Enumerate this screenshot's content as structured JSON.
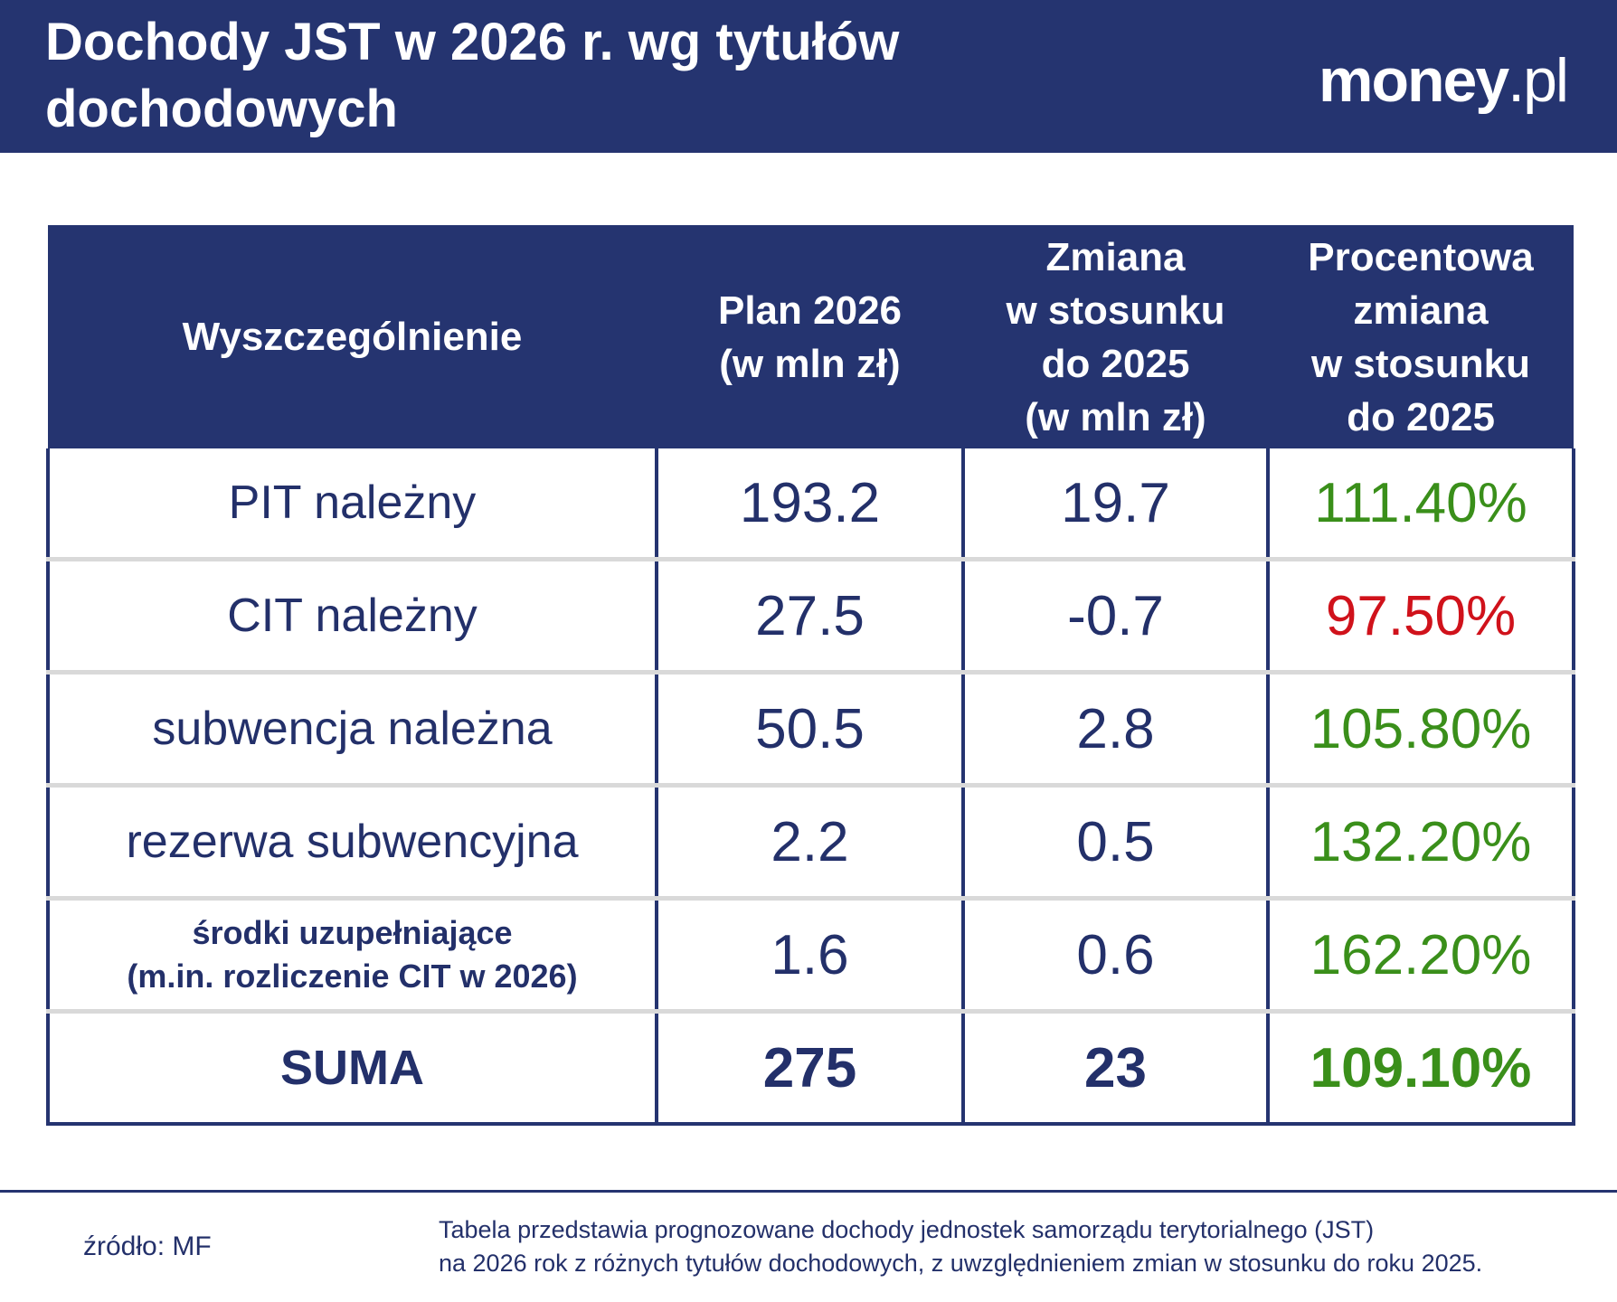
{
  "header": {
    "title": "Dochody JST w 2026 r. wg tytułów dochodowych",
    "logo": "money",
    "logo_suffix": ".pl"
  },
  "table": {
    "columns": [
      [
        "Wyszczególnienie"
      ],
      [
        "Plan 2026",
        "(w mln zł)"
      ],
      [
        "Zmiana",
        "w stosunku",
        "do 2025",
        "(w mln zł)"
      ],
      [
        "Procentowa",
        "zmiana",
        "w stosunku",
        "do 2025"
      ]
    ],
    "rows": [
      [
        [
          "PIT należny"
        ],
        "193.2",
        "19.7",
        "111.40%"
      ],
      [
        [
          "CIT należny"
        ],
        "27.5",
        "-0.7",
        "97.50%"
      ],
      [
        [
          "subwencja należna"
        ],
        "50.5",
        "2.8",
        "105.80%"
      ],
      [
        [
          "rezerwa subwencyjna"
        ],
        "2.2",
        "0.5",
        "132.20%"
      ],
      [
        [
          "środki uzupełniające",
          "(m.in. rozliczenie CIT w 2026)"
        ],
        "1.6",
        "0.6",
        "162.20%"
      ],
      [
        [
          "SUMA"
        ],
        "275",
        "23",
        "109.10%"
      ]
    ],
    "percent_colors": [
      "#3a8f1a",
      "#d0121b",
      "#3a8f1a",
      "#3a8f1a",
      "#3a8f1a",
      "#3a8f1a"
    ]
  },
  "footer": {
    "source": "źródło: MF",
    "note": [
      "Tabela przedstawia prognozowane dochody jednostek samorządu terytorialnego (JST)",
      "na 2026 rok z różnych tytułów dochodowych, z uwzględnieniem zmian w stosunku do roku 2025."
    ]
  }
}
